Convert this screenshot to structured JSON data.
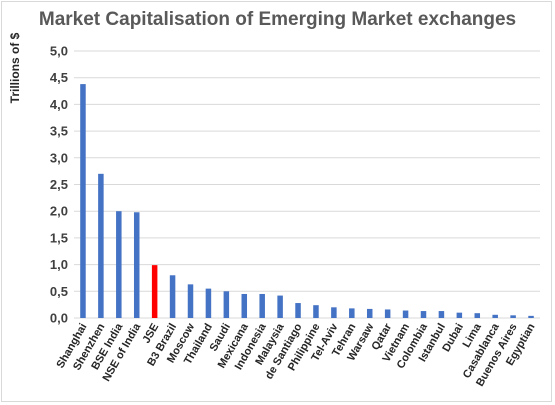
{
  "chart_data": {
    "type": "bar",
    "title": "Market Capitalisation of Emerging Market exchanges",
    "ylabel": "Trillions of $",
    "xlabel": "",
    "ylim": [
      0,
      5
    ],
    "yticks": [
      "0,0",
      "0,5",
      "1,0",
      "1,5",
      "2,0",
      "2,5",
      "3,0",
      "3,5",
      "4,0",
      "4,5",
      "5,0"
    ],
    "grid": "horizontal",
    "categories": [
      "Shanghai",
      "Shenzhen",
      "BSE India",
      "NSE of India",
      "JSE",
      "B3 Brazil",
      "Moscow",
      "Thailand",
      "Saudi",
      "Mexicana",
      "Indonesia",
      "Malaysia",
      "de Santiago",
      "Philippine",
      "Tel-Aviv",
      "Tehran",
      "Warsaw",
      "Qatar",
      "Vietnam",
      "Colombia",
      "Istanbul",
      "Dubai",
      "Lima",
      "Casablanca",
      "Buenos Aires",
      "Egyptian"
    ],
    "values": [
      4.38,
      2.7,
      2.0,
      1.98,
      0.99,
      0.8,
      0.63,
      0.55,
      0.5,
      0.45,
      0.45,
      0.42,
      0.28,
      0.24,
      0.2,
      0.18,
      0.17,
      0.16,
      0.14,
      0.13,
      0.13,
      0.1,
      0.09,
      0.06,
      0.05,
      0.04
    ],
    "highlight": "JSE",
    "colors": {
      "bar": "#4472c4",
      "highlight": "#ff0000",
      "grid": "#d9d9d9"
    }
  }
}
